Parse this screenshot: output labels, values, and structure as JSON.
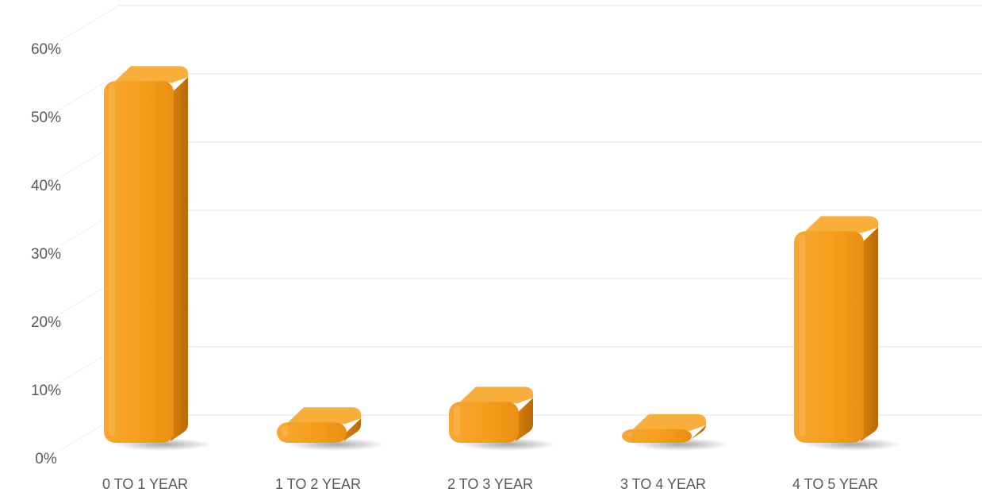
{
  "chart_data": {
    "type": "bar",
    "title": "",
    "xlabel": "",
    "ylabel": "",
    "categories": [
      "0 TO 1 YEAR",
      "1 TO 2 YEAR",
      "2 TO 3 YEAR",
      "3 TO 4 YEAR",
      "4 TO 5 YEAR"
    ],
    "series": [
      {
        "values": [
          53,
          3,
          6,
          2,
          31
        ]
      }
    ],
    "ylim": [
      0,
      60
    ],
    "y_ticks": [
      "0%",
      "10%",
      "20%",
      "30%",
      "40%",
      "50%",
      "60%"
    ],
    "grid": true,
    "legend": "none",
    "style": "3d-rounded-bars",
    "colors": {
      "bar": "#F5A01E",
      "bar_side": "#D9820C",
      "bar_top": "#F8AE3A",
      "grid": "#E6E6E6",
      "text": "#595959"
    }
  }
}
